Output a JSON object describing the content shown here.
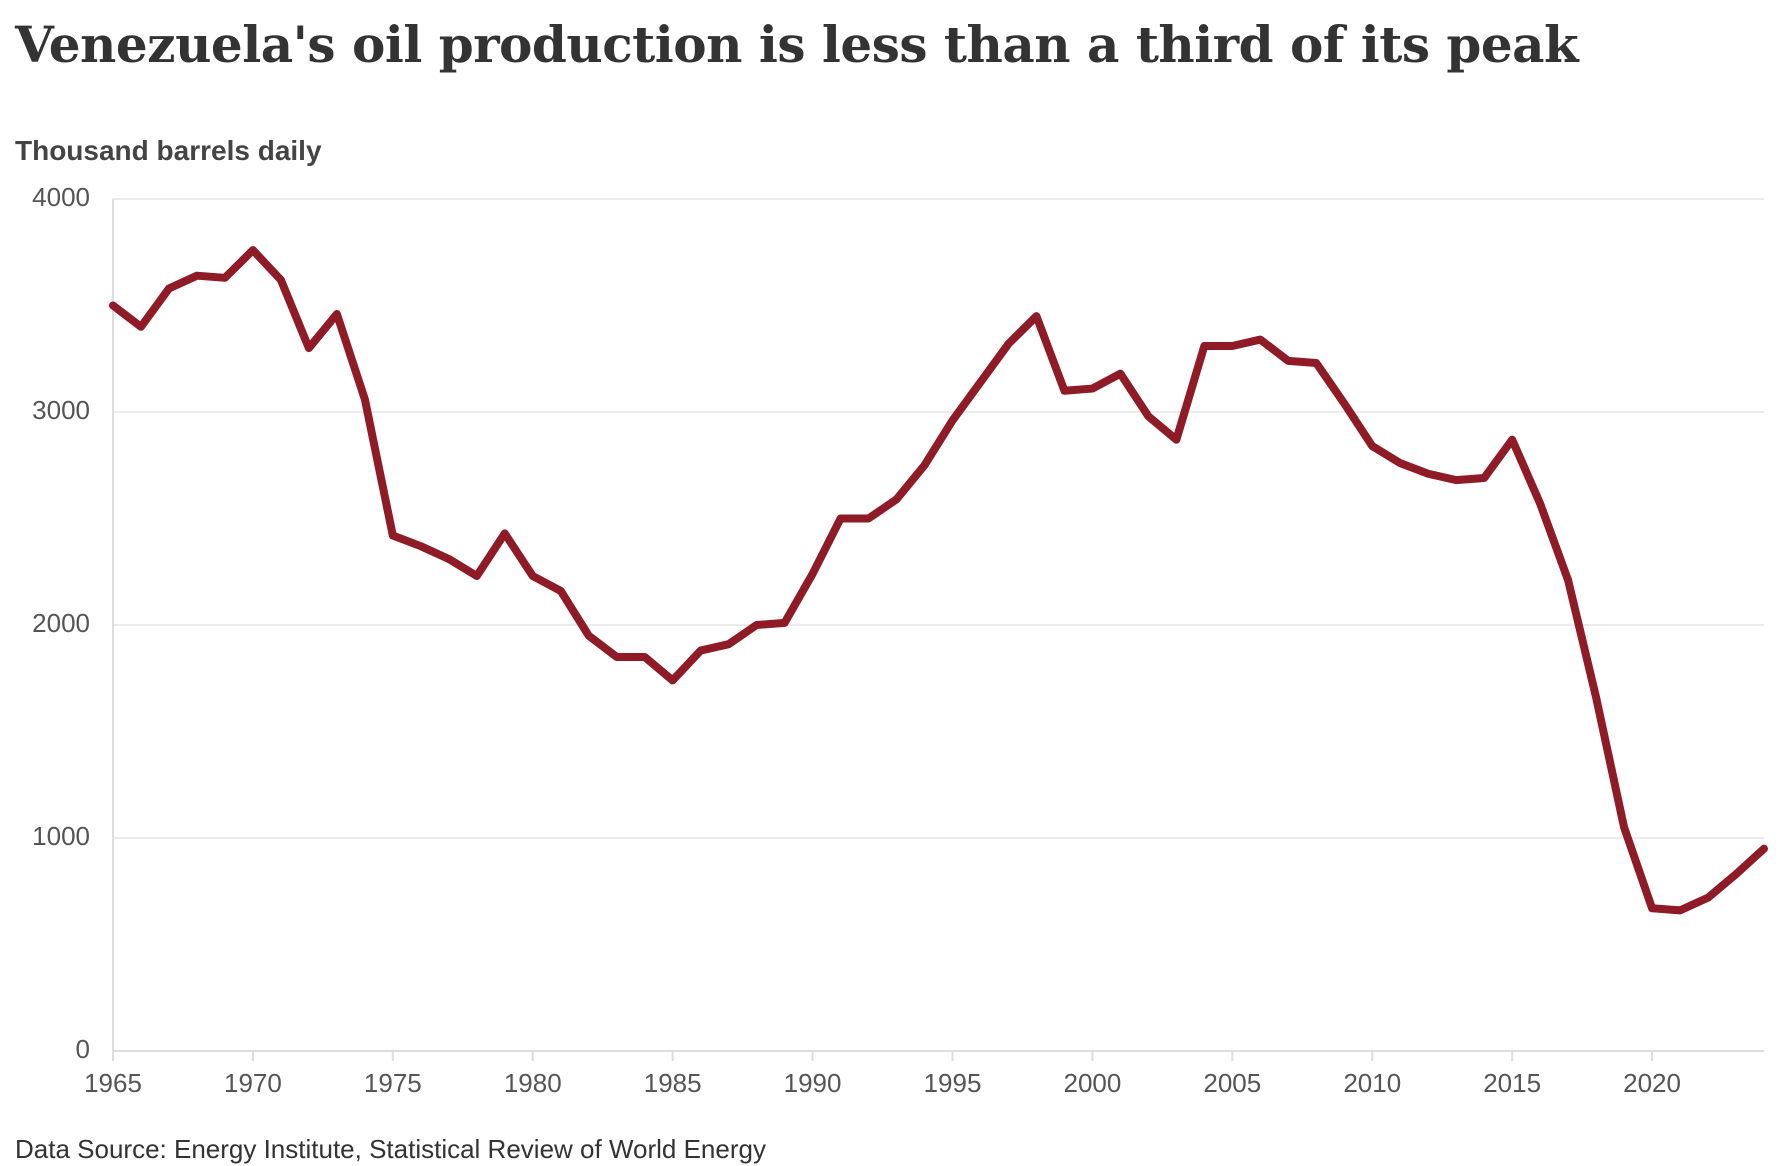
{
  "title": "Venezuela's oil production is less than a third of its peak",
  "source": "Data Source: Energy Institute, Statistical Review of World Energy",
  "colors": {
    "line": "#8f1b27",
    "grid": "#ebebeb",
    "axis": "#dddddd",
    "tick_text": "#555555"
  },
  "chart_data": {
    "type": "line",
    "ylabel": "Thousand barrels daily",
    "xlabel": "",
    "xlim": [
      1965,
      2024
    ],
    "ylim": [
      0,
      4000
    ],
    "x_ticks": [
      "1965",
      "1970",
      "1975",
      "1980",
      "1985",
      "1990",
      "1995",
      "2000",
      "2005",
      "2010",
      "2015",
      "2020"
    ],
    "y_ticks": [
      "0",
      "1000",
      "2000",
      "3000",
      "4000"
    ],
    "grid": true,
    "legend": "none",
    "series": [
      {
        "x": [
          1965,
          1966,
          1967,
          1968,
          1969,
          1970,
          1971,
          1972,
          1973,
          1974,
          1975,
          1976,
          1977,
          1978,
          1979,
          1980,
          1981,
          1982,
          1983,
          1984,
          1985,
          1986,
          1987,
          1988,
          1989,
          1990,
          1991,
          1992,
          1993,
          1994,
          1995,
          1996,
          1997,
          1998,
          1999,
          2000,
          2001,
          2002,
          2003,
          2004,
          2005,
          2006,
          2007,
          2008,
          2009,
          2010,
          2011,
          2012,
          2013,
          2014,
          2015,
          2016,
          2017,
          2018,
          2019,
          2020,
          2021,
          2022,
          2023,
          2024
        ],
        "values": [
          3500,
          3400,
          3580,
          3640,
          3630,
          3760,
          3620,
          3300,
          3460,
          3060,
          2420,
          2370,
          2310,
          2230,
          2430,
          2230,
          2160,
          1950,
          1850,
          1850,
          1740,
          1880,
          1910,
          2000,
          2010,
          2240,
          2500,
          2500,
          2590,
          2750,
          2960,
          3140,
          3320,
          3450,
          3100,
          3110,
          3180,
          2980,
          2870,
          3310,
          3310,
          3340,
          3240,
          3230,
          3040,
          2840,
          2760,
          2710,
          2680,
          2690,
          2870,
          2570,
          2210,
          1660,
          1050,
          670,
          660,
          720,
          830,
          950
        ]
      }
    ]
  }
}
